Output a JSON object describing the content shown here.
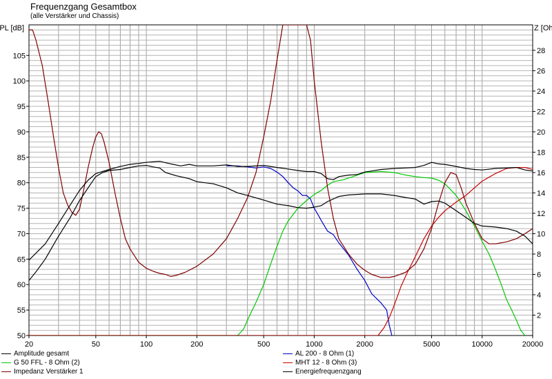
{
  "title": "Frequenzgang Gesamtbox",
  "subtitle": "(alle Verstärker und Chassis)",
  "chart_data": {
    "type": "line",
    "ylabel_left": "SPL [dB]",
    "ylabel_right": "Z [Ohm]",
    "x_log": true,
    "xlim": [
      20,
      20000
    ],
    "ylim_left": [
      50,
      111
    ],
    "ylim_right": [
      0,
      30.5
    ],
    "x_ticks": [
      20,
      50,
      100,
      200,
      500,
      1000,
      2000,
      5000,
      10000,
      20000
    ],
    "x_tick_labels": [
      "20",
      "50",
      "100",
      "200",
      "500",
      "1000",
      "2000",
      "5000",
      "10000",
      "20000"
    ],
    "y_ticks_left": [
      50,
      55,
      60,
      65,
      70,
      75,
      80,
      85,
      90,
      95,
      100,
      105
    ],
    "y_ticks_right": [
      2,
      4,
      6,
      8,
      10,
      12,
      14,
      16,
      18,
      20,
      22,
      24,
      26,
      28
    ],
    "grid": true,
    "series": [
      {
        "name": "Amplitude gesamt",
        "color": "#000000",
        "axis": "left",
        "points": [
          [
            20,
            64.8
          ],
          [
            25,
            68
          ],
          [
            30,
            72
          ],
          [
            35,
            75.5
          ],
          [
            40,
            78.5
          ],
          [
            45,
            80.5
          ],
          [
            50,
            81.8
          ],
          [
            60,
            82.6
          ],
          [
            70,
            83.2
          ],
          [
            80,
            83.6
          ],
          [
            90,
            83.8
          ],
          [
            100,
            84
          ],
          [
            110,
            84.1
          ],
          [
            120,
            84.2
          ],
          [
            140,
            83.7
          ],
          [
            160,
            83.3
          ],
          [
            180,
            83.6
          ],
          [
            200,
            83.3
          ],
          [
            250,
            83.3
          ],
          [
            300,
            83.5
          ],
          [
            350,
            83.2
          ],
          [
            400,
            83.2
          ],
          [
            500,
            83.4
          ],
          [
            600,
            83
          ],
          [
            700,
            82.7
          ],
          [
            800,
            82.4
          ],
          [
            900,
            82.2
          ],
          [
            1000,
            82.2
          ],
          [
            1100,
            81.8
          ],
          [
            1200,
            80.8
          ],
          [
            1300,
            80.6
          ],
          [
            1400,
            81.2
          ],
          [
            1600,
            81.5
          ],
          [
            1800,
            81.6
          ],
          [
            2000,
            82.1
          ],
          [
            2200,
            82.3
          ],
          [
            2500,
            82.6
          ],
          [
            3000,
            82.8
          ],
          [
            3500,
            82.9
          ],
          [
            4000,
            83
          ],
          [
            4500,
            83.4
          ],
          [
            5000,
            84
          ],
          [
            5500,
            83.7
          ],
          [
            6000,
            83.6
          ],
          [
            7000,
            83.2
          ],
          [
            8000,
            82.8
          ],
          [
            9000,
            82.6
          ],
          [
            10000,
            82.5
          ],
          [
            12000,
            82.8
          ],
          [
            14000,
            82.9
          ],
          [
            16000,
            83
          ],
          [
            18000,
            82.5
          ],
          [
            20000,
            82.3
          ]
        ]
      },
      {
        "name": "AL 200 - 8 Ohm (1)",
        "color": "#0000c8",
        "axis": "left",
        "points": [
          [
            300,
            83.3
          ],
          [
            350,
            83.3
          ],
          [
            400,
            83.1
          ],
          [
            450,
            82.9
          ],
          [
            500,
            83.1
          ],
          [
            550,
            82.8
          ],
          [
            600,
            82.1
          ],
          [
            650,
            81.2
          ],
          [
            700,
            80
          ],
          [
            750,
            79
          ],
          [
            800,
            78.4
          ],
          [
            850,
            77.5
          ],
          [
            900,
            77.5
          ],
          [
            950,
            76.8
          ],
          [
            1000,
            75
          ],
          [
            1050,
            73.8
          ],
          [
            1100,
            72.6
          ],
          [
            1200,
            70.5
          ],
          [
            1300,
            69.8
          ],
          [
            1400,
            68.2
          ],
          [
            1600,
            65.8
          ],
          [
            1800,
            63
          ],
          [
            2000,
            60.8
          ],
          [
            2200,
            58.2
          ],
          [
            2500,
            56.4
          ],
          [
            2700,
            55
          ],
          [
            2800,
            52
          ],
          [
            2900,
            50
          ]
        ]
      },
      {
        "name": "G 50 FFL - 8 Ohm (2)",
        "color": "#00c800",
        "axis": "left",
        "points": [
          [
            20,
            50
          ],
          [
            350,
            50
          ],
          [
            380,
            51.3
          ],
          [
            400,
            53
          ],
          [
            450,
            56.5
          ],
          [
            500,
            60
          ],
          [
            550,
            64
          ],
          [
            600,
            67.5
          ],
          [
            650,
            70.5
          ],
          [
            700,
            72.5
          ],
          [
            800,
            75
          ],
          [
            900,
            76.5
          ],
          [
            1000,
            77.7
          ],
          [
            1100,
            78.5
          ],
          [
            1200,
            79.5
          ],
          [
            1300,
            80.2
          ],
          [
            1500,
            80.6
          ],
          [
            1700,
            81.2
          ],
          [
            2000,
            82
          ],
          [
            2500,
            82.2
          ],
          [
            3000,
            82
          ],
          [
            3500,
            81.5
          ],
          [
            4000,
            81.2
          ],
          [
            4500,
            81
          ],
          [
            5000,
            80.9
          ],
          [
            5500,
            80.5
          ],
          [
            6000,
            79.8
          ],
          [
            7000,
            77.5
          ],
          [
            8000,
            74.5
          ],
          [
            9000,
            71.5
          ],
          [
            10000,
            68.5
          ],
          [
            11000,
            66
          ],
          [
            12000,
            63
          ],
          [
            13000,
            60
          ],
          [
            14000,
            57
          ],
          [
            15000,
            55
          ],
          [
            16000,
            53
          ],
          [
            17000,
            51
          ],
          [
            18000,
            50
          ]
        ]
      },
      {
        "name": "MHT 12 - 8 Ohm (3)",
        "color": "#c80000",
        "axis": "left",
        "points": [
          [
            20,
            50
          ],
          [
            2400,
            50
          ],
          [
            2600,
            51.5
          ],
          [
            2800,
            53.5
          ],
          [
            3000,
            56
          ],
          [
            3300,
            59.8
          ],
          [
            3600,
            62.5
          ],
          [
            4000,
            65.5
          ],
          [
            4500,
            69
          ],
          [
            5000,
            71.5
          ],
          [
            5500,
            73.2
          ],
          [
            6000,
            74.5
          ],
          [
            7000,
            76.2
          ],
          [
            8000,
            77.5
          ],
          [
            9000,
            79
          ],
          [
            10000,
            80.3
          ],
          [
            12000,
            81.8
          ],
          [
            14000,
            82.8
          ],
          [
            16000,
            83
          ],
          [
            18000,
            83
          ],
          [
            20000,
            82.6
          ]
        ]
      },
      {
        "name": "Impedanz Verstärker 1",
        "color": "#800000",
        "axis": "right",
        "points": [
          [
            20,
            30
          ],
          [
            21,
            30
          ],
          [
            22,
            29
          ],
          [
            24,
            26.5
          ],
          [
            26,
            23
          ],
          [
            28,
            19.5
          ],
          [
            30,
            16.5
          ],
          [
            32,
            14
          ],
          [
            34,
            12.8
          ],
          [
            36,
            12.1
          ],
          [
            38,
            11.8
          ],
          [
            40,
            12.4
          ],
          [
            42,
            14
          ],
          [
            45,
            16.5
          ],
          [
            48,
            18.5
          ],
          [
            50,
            19.5
          ],
          [
            52,
            20
          ],
          [
            54,
            19.8
          ],
          [
            56,
            19
          ],
          [
            60,
            17
          ],
          [
            65,
            14
          ],
          [
            70,
            11.5
          ],
          [
            75,
            9.5
          ],
          [
            80,
            8.5
          ],
          [
            90,
            7.2
          ],
          [
            100,
            6.6
          ],
          [
            110,
            6.3
          ],
          [
            120,
            6.1
          ],
          [
            130,
            6
          ],
          [
            140,
            5.8
          ],
          [
            150,
            5.9
          ],
          [
            170,
            6.2
          ],
          [
            200,
            6.8
          ],
          [
            250,
            8
          ],
          [
            300,
            9.5
          ],
          [
            350,
            11.5
          ],
          [
            400,
            13.5
          ],
          [
            450,
            16
          ],
          [
            500,
            19.5
          ],
          [
            550,
            23
          ],
          [
            600,
            27
          ],
          [
            650,
            30.5
          ],
          [
            700,
            30.5
          ],
          [
            800,
            30.5
          ],
          [
            900,
            30.5
          ],
          [
            950,
            29
          ],
          [
            1000,
            25
          ],
          [
            1100,
            19
          ],
          [
            1200,
            14.5
          ],
          [
            1300,
            11.5
          ],
          [
            1400,
            9.5
          ],
          [
            1600,
            8
          ],
          [
            1800,
            7
          ],
          [
            2000,
            6.4
          ],
          [
            2200,
            6
          ],
          [
            2500,
            5.7
          ],
          [
            2800,
            5.7
          ],
          [
            3000,
            5.8
          ],
          [
            3500,
            6.2
          ],
          [
            4000,
            7
          ],
          [
            4500,
            8.5
          ],
          [
            5000,
            10.5
          ],
          [
            5500,
            13
          ],
          [
            6000,
            15
          ],
          [
            6500,
            16
          ],
          [
            7000,
            15.8
          ],
          [
            7500,
            14.5
          ],
          [
            8000,
            13
          ],
          [
            9000,
            11
          ],
          [
            10000,
            9.5
          ],
          [
            11000,
            9
          ],
          [
            12000,
            9
          ],
          [
            14000,
            9.2
          ],
          [
            16000,
            9.5
          ],
          [
            18000,
            10
          ],
          [
            20000,
            10.5
          ]
        ]
      },
      {
        "name": "Energiefrequenzgang",
        "color": "#000000",
        "axis": "left",
        "points": [
          [
            20,
            60.8
          ],
          [
            22,
            62.5
          ],
          [
            25,
            65
          ],
          [
            30,
            69.5
          ],
          [
            35,
            73
          ],
          [
            40,
            76.5
          ],
          [
            45,
            79
          ],
          [
            50,
            81.2
          ],
          [
            55,
            82
          ],
          [
            60,
            82.4
          ],
          [
            70,
            82.6
          ],
          [
            80,
            83
          ],
          [
            90,
            83.3
          ],
          [
            100,
            83.4
          ],
          [
            110,
            83.1
          ],
          [
            120,
            82.9
          ],
          [
            130,
            82
          ],
          [
            150,
            81.4
          ],
          [
            180,
            80.8
          ],
          [
            200,
            80.2
          ],
          [
            250,
            79.8
          ],
          [
            300,
            79
          ],
          [
            350,
            78
          ],
          [
            400,
            77.5
          ],
          [
            500,
            76.6
          ],
          [
            600,
            75.8
          ],
          [
            700,
            75.5
          ],
          [
            800,
            75.1
          ],
          [
            900,
            75
          ],
          [
            1000,
            75.2
          ],
          [
            1100,
            75.5
          ],
          [
            1200,
            76.3
          ],
          [
            1400,
            77.3
          ],
          [
            1600,
            77.6
          ],
          [
            2000,
            77.8
          ],
          [
            2500,
            77.8
          ],
          [
            3000,
            77.5
          ],
          [
            3500,
            77.1
          ],
          [
            4000,
            76.8
          ],
          [
            4500,
            75.8
          ],
          [
            5000,
            76.3
          ],
          [
            5500,
            76.4
          ],
          [
            6000,
            76
          ],
          [
            7000,
            74.5
          ],
          [
            8000,
            73.2
          ],
          [
            9000,
            72
          ],
          [
            10000,
            71.5
          ],
          [
            12000,
            71.3
          ],
          [
            14000,
            71
          ],
          [
            16000,
            70.5
          ],
          [
            18000,
            69.5
          ],
          [
            20000,
            68
          ]
        ]
      }
    ]
  }
}
